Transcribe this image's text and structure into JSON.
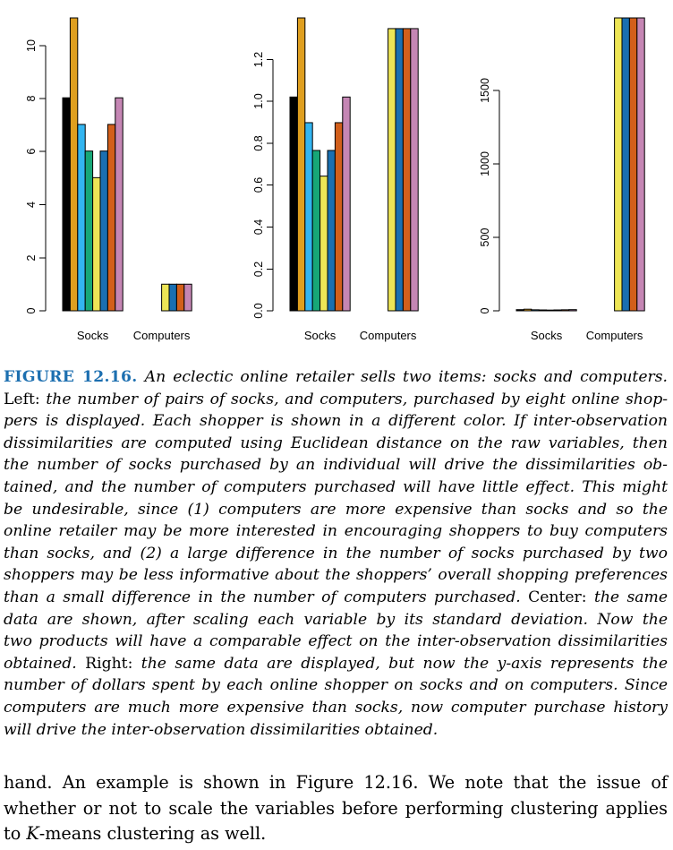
{
  "chart_data": [
    {
      "type": "bar",
      "categories": [
        "Socks",
        "Computers"
      ],
      "ylim": [
        0,
        11
      ],
      "yticks": [
        "0",
        "2",
        "4",
        "6",
        "8",
        "10"
      ],
      "series": [
        {
          "values": [
            8,
            0
          ],
          "color": "#000000"
        },
        {
          "values": [
            11,
            0
          ],
          "color": "#DF9F1F"
        },
        {
          "values": [
            7,
            0
          ],
          "color": "#33B5F0"
        },
        {
          "values": [
            6,
            0
          ],
          "color": "#17A777"
        },
        {
          "values": [
            5,
            1
          ],
          "color": "#EDE556"
        },
        {
          "values": [
            6,
            1
          ],
          "color": "#1A6FB1"
        },
        {
          "values": [
            7,
            1
          ],
          "color": "#D25F1B"
        },
        {
          "values": [
            8,
            1
          ],
          "color": "#C586B4"
        }
      ]
    },
    {
      "type": "bar",
      "categories": [
        "Socks",
        "Computers"
      ],
      "ylim": [
        0,
        1.37
      ],
      "yticks": [
        "0.0",
        "0.2",
        "0.4",
        "0.6",
        "0.8",
        "1.0",
        "1.2"
      ],
      "series": [
        {
          "values": [
            1.0,
            0
          ],
          "color": "#000000"
        },
        {
          "values": [
            1.37,
            0
          ],
          "color": "#DF9F1F"
        },
        {
          "values": [
            0.88,
            0
          ],
          "color": "#33B5F0"
        },
        {
          "values": [
            0.75,
            0
          ],
          "color": "#17A777"
        },
        {
          "values": [
            0.63,
            1.32
          ],
          "color": "#EDE556"
        },
        {
          "values": [
            0.75,
            1.32
          ],
          "color": "#1A6FB1"
        },
        {
          "values": [
            0.88,
            1.32
          ],
          "color": "#D25F1B"
        },
        {
          "values": [
            1.0,
            1.32
          ],
          "color": "#C586B4"
        }
      ]
    },
    {
      "type": "bar",
      "categories": [
        "Socks",
        "Computers"
      ],
      "ylim": [
        0,
        2000
      ],
      "yticks": [
        "0",
        "500",
        "1000",
        "1500"
      ],
      "series": [
        {
          "values": [
            8,
            0
          ],
          "color": "#000000"
        },
        {
          "values": [
            11,
            0
          ],
          "color": "#DF9F1F"
        },
        {
          "values": [
            7,
            0
          ],
          "color": "#33B5F0"
        },
        {
          "values": [
            6,
            0
          ],
          "color": "#17A777"
        },
        {
          "values": [
            5,
            2000
          ],
          "color": "#EDE556"
        },
        {
          "values": [
            6,
            2000
          ],
          "color": "#1A6FB1"
        },
        {
          "values": [
            7,
            2000
          ],
          "color": "#D25F1B"
        },
        {
          "values": [
            8,
            2000
          ],
          "color": "#C586B4"
        }
      ]
    }
  ],
  "caption": {
    "label": "FIGURE 12.16.",
    "lines": [
      [
        {
          "t": "label"
        },
        {
          "t": "i",
          "s": " An eclectic online retailer sells two items: socks and computers."
        }
      ],
      [
        {
          "t": "r",
          "s": "Left: "
        },
        {
          "t": "i",
          "s": "the number of pairs of socks, and computers, purchased by eight online shop-"
        }
      ],
      [
        {
          "t": "i",
          "s": "pers is displayed. Each shopper is shown in a different color. If inter-observation"
        }
      ],
      [
        {
          "t": "i",
          "s": "dissimilarities are computed using Euclidean distance on the raw variables, then"
        }
      ],
      [
        {
          "t": "i",
          "s": "the number of socks purchased by an individual will drive the dissimilarities ob-"
        }
      ],
      [
        {
          "t": "i",
          "s": "tained, and the number of computers purchased will have little effect. This might"
        }
      ],
      [
        {
          "t": "i",
          "s": "be undesirable, since (1) computers are more expensive than socks and so the"
        }
      ],
      [
        {
          "t": "i",
          "s": "online retailer may be more interested in encouraging shoppers to buy computers"
        }
      ],
      [
        {
          "t": "i",
          "s": "than socks, and (2) a large difference in the number of socks purchased by two"
        }
      ],
      [
        {
          "t": "i",
          "s": "shoppers may be less informative about the shoppers’ overall shopping preferences"
        }
      ],
      [
        {
          "t": "i",
          "s": "than a small difference in the number of computers purchased."
        },
        {
          "t": "r",
          "s": " Center: "
        },
        {
          "t": "i",
          "s": "the same"
        }
      ],
      [
        {
          "t": "i",
          "s": "data are shown, after scaling each variable by its standard deviation. Now the"
        }
      ],
      [
        {
          "t": "i",
          "s": "two products will have a comparable effect on the inter-observation dissimilarities"
        }
      ],
      [
        {
          "t": "i",
          "s": "obtained."
        },
        {
          "t": "r",
          "s": " Right: "
        },
        {
          "t": "i",
          "s": "the same data are displayed, but now the y-axis represents the"
        }
      ],
      [
        {
          "t": "i",
          "s": "number of dollars spent by each online shopper on socks and on computers. Since"
        }
      ],
      [
        {
          "t": "i",
          "s": "computers are much more expensive than socks, now computer purchase history"
        }
      ],
      [
        {
          "t": "i",
          "s": "will drive the inter-observation dissimilarities obtained."
        }
      ]
    ]
  },
  "body": {
    "lines": [
      [
        {
          "t": "r",
          "s": "hand. An example is shown in Figure 12.16. We note that the issue of"
        }
      ],
      [
        {
          "t": "r",
          "s": "whether or not to scale the variables before performing clustering applies"
        }
      ],
      [
        {
          "t": "r",
          "s": "to "
        },
        {
          "t": "i",
          "s": "K"
        },
        {
          "t": "r",
          "s": "-means clustering as well."
        }
      ]
    ]
  }
}
